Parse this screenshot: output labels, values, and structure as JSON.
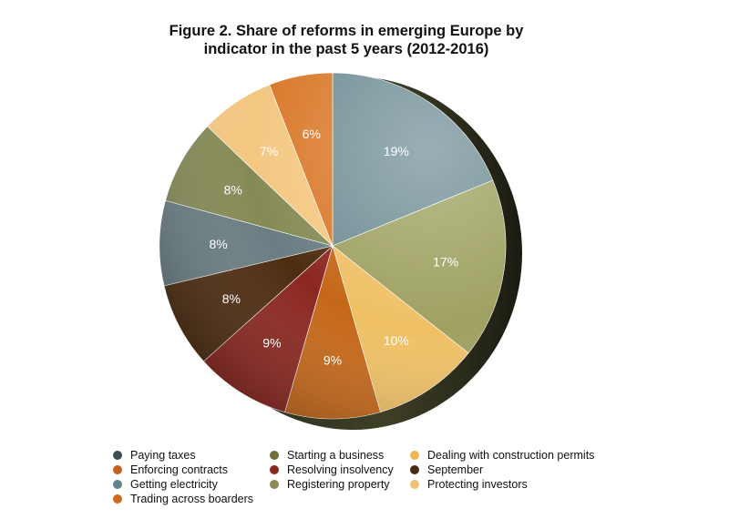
{
  "chart_data": {
    "type": "pie",
    "title_line1": "Figure 2. Share of reforms in emerging Europe by",
    "title_line2": "indicator in the past 5 years (2012-2016)",
    "slices": [
      {
        "label": "Getting electricity",
        "value": 19,
        "display": "19%",
        "color": "#6f8e95"
      },
      {
        "label": "Starting a business",
        "value": 17,
        "display": "17%",
        "color": "#9ea160"
      },
      {
        "label": "Dealing with construction permits",
        "value": 10,
        "display": "10%",
        "color": "#efc065"
      },
      {
        "label": "Enforcing contracts",
        "value": 9,
        "display": "9%",
        "color": "#c56718"
      },
      {
        "label": "Resolving insolvency",
        "value": 9,
        "display": "9%",
        "color": "#8c2620"
      },
      {
        "label": "September",
        "value": 8,
        "display": "8%",
        "color": "#4d2c10"
      },
      {
        "label": "Getting electricity",
        "value": 8,
        "display": "8%",
        "color": "#6a7d82"
      },
      {
        "label": "Registering property",
        "value": 8,
        "display": "8%",
        "color": "#858a55"
      },
      {
        "label": "Protecting investors",
        "value": 7,
        "display": "7%",
        "color": "#f4c781"
      },
      {
        "label": "Trading across boarders",
        "value": 6,
        "display": "6%",
        "color": "#d9792a"
      }
    ],
    "legend": [
      {
        "label": "Paying taxes",
        "color": "#3d4e54"
      },
      {
        "label": "Enforcing contracts",
        "color": "#c5611a"
      },
      {
        "label": "Getting electricity",
        "color": "#64838a"
      },
      {
        "label": "Trading across boarders",
        "color": "#d06a1e"
      },
      {
        "label": "Starting a business",
        "color": "#6d6e3b"
      },
      {
        "label": "Resolving insolvency",
        "color": "#8c2620"
      },
      {
        "label": "Registering property",
        "color": "#8a8c55"
      },
      {
        "label": "Dealing with construction permits",
        "color": "#efb552"
      },
      {
        "label": "September",
        "color": "#4a2a10"
      },
      {
        "label": "Protecting investors",
        "color": "#f3c176"
      }
    ]
  }
}
